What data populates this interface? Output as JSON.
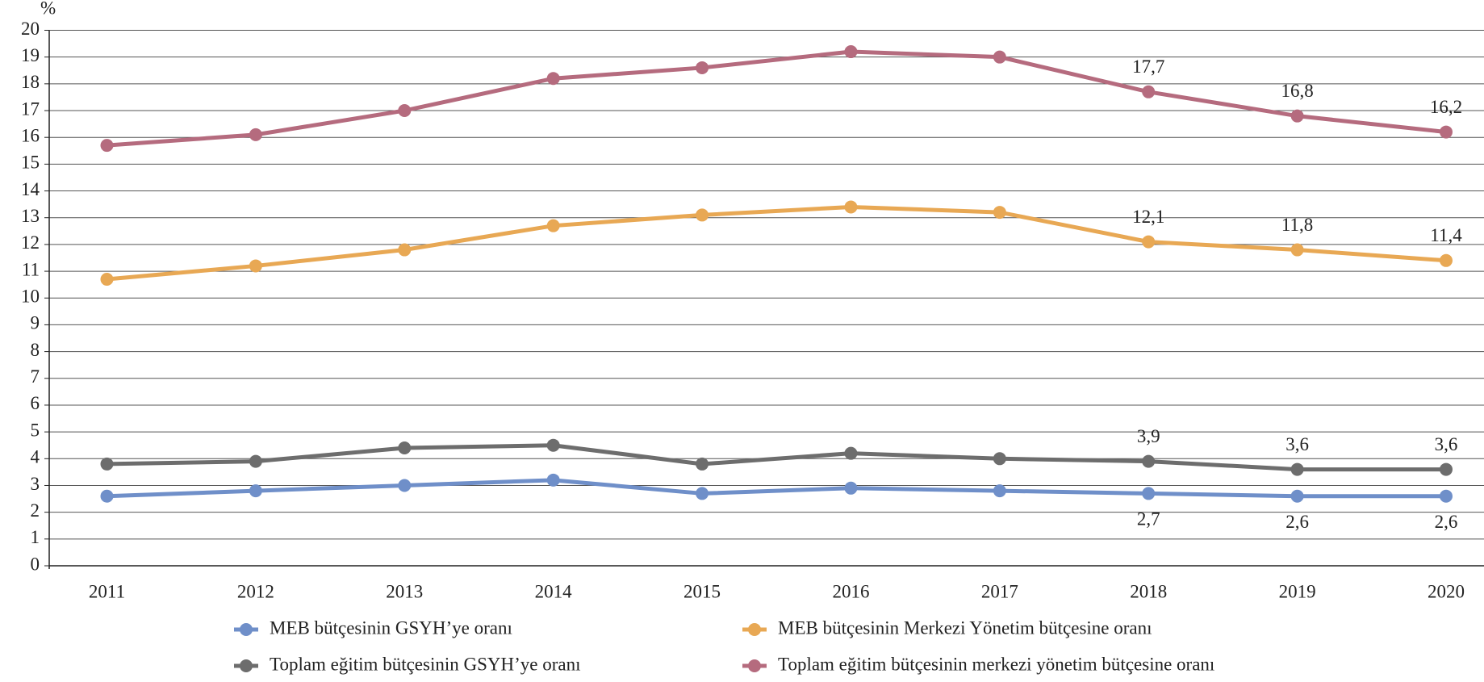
{
  "chart_data": {
    "type": "line",
    "y_label": "%",
    "categories": [
      "2011",
      "2012",
      "2013",
      "2014",
      "2015",
      "2016",
      "2017",
      "2018",
      "2019",
      "2020"
    ],
    "series": [
      {
        "name": "MEB bütçesinin GSYH’ye oranı",
        "color": "#6f8fc9",
        "values": [
          2.6,
          2.8,
          3.0,
          3.2,
          2.7,
          2.9,
          2.8,
          2.7,
          2.6,
          2.6
        ],
        "value_labels": [
          null,
          null,
          null,
          null,
          null,
          null,
          null,
          "2,7",
          "2,6",
          "2,6"
        ]
      },
      {
        "name": "MEB bütçesinin Merkezi Yönetim bütçesine oranı",
        "color": "#e8a854",
        "values": [
          10.7,
          11.2,
          11.8,
          12.7,
          13.1,
          13.4,
          13.2,
          12.1,
          11.8,
          11.4
        ],
        "value_labels": [
          null,
          null,
          null,
          null,
          null,
          null,
          null,
          "12,1",
          "11,8",
          "11,4"
        ]
      },
      {
        "name": "Toplam eğitim bütçesinin GSYH’ye oranı",
        "color": "#6d6d6d",
        "values": [
          3.8,
          3.9,
          4.4,
          4.5,
          3.8,
          4.2,
          4.0,
          3.9,
          3.6,
          3.6
        ],
        "value_labels": [
          null,
          null,
          null,
          null,
          null,
          null,
          null,
          "3,9",
          "3,6",
          "3,6"
        ]
      },
      {
        "name": "Toplam eğitim bütçesinin merkezi yönetim bütçesine oranı",
        "color": "#b56b7e",
        "values": [
          15.7,
          16.1,
          17.0,
          18.2,
          18.6,
          19.2,
          19.0,
          17.7,
          16.8,
          16.2
        ],
        "value_labels": [
          null,
          null,
          null,
          null,
          null,
          null,
          null,
          "17,7",
          "16,8",
          "16,2"
        ]
      }
    ],
    "ylim": [
      0,
      20
    ],
    "yticks": [
      0,
      1,
      2,
      3,
      4,
      5,
      6,
      7,
      8,
      9,
      10,
      11,
      12,
      13,
      14,
      15,
      16,
      17,
      18,
      19,
      20
    ],
    "grid": true
  }
}
